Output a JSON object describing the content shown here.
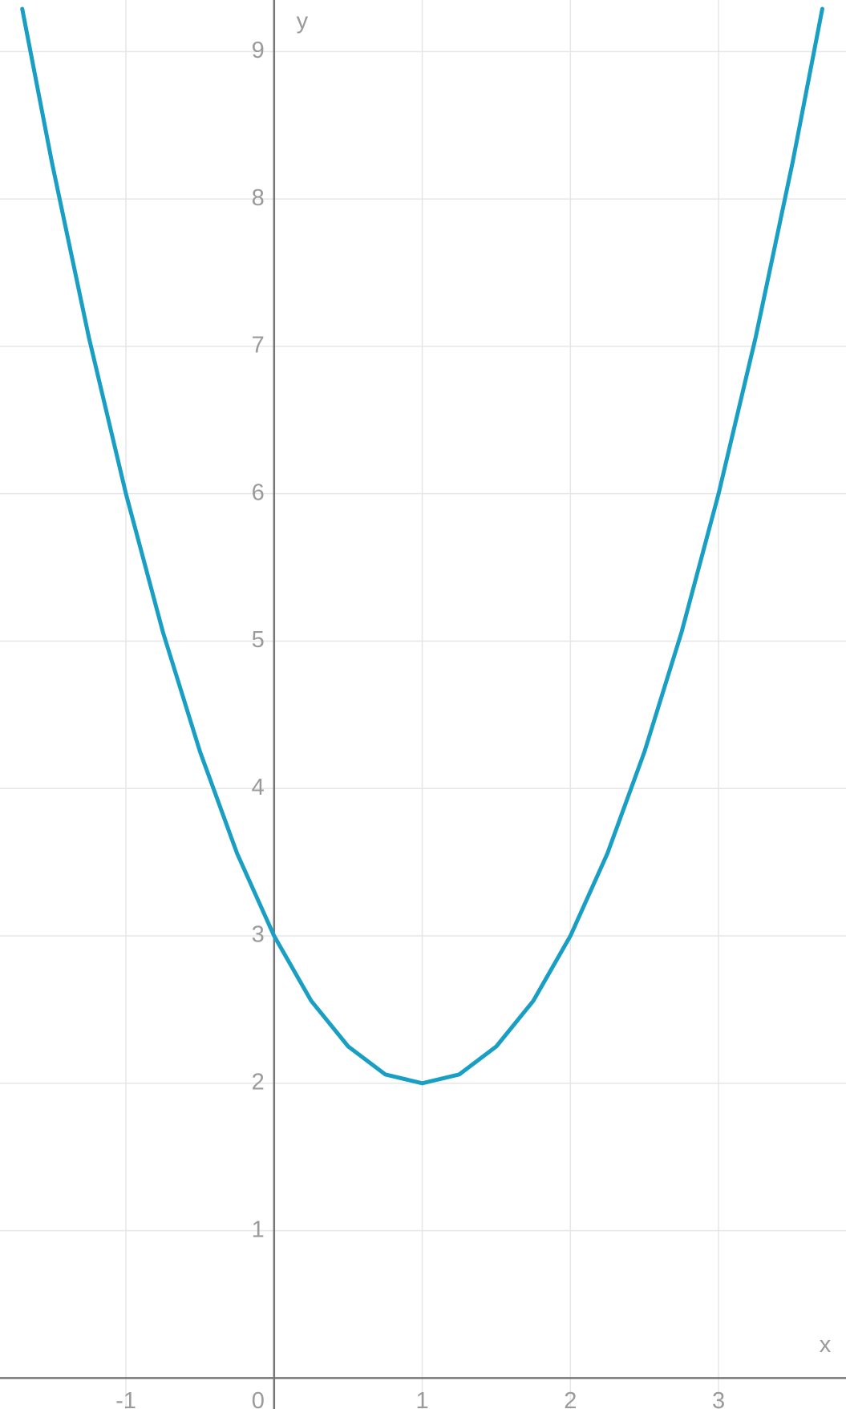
{
  "chart_data": {
    "type": "line",
    "x_label": "x",
    "y_label": "y",
    "x": [
      -1.7,
      -1.5,
      -1.25,
      -1,
      -0.75,
      -0.5,
      -0.25,
      0,
      0.25,
      0.5,
      0.75,
      1,
      1.25,
      1.5,
      1.75,
      2,
      2.25,
      2.5,
      2.75,
      3,
      3.25,
      3.5,
      3.7
    ],
    "values": [
      9.29,
      8.25,
      7.06,
      6,
      5.06,
      4.25,
      3.56,
      3,
      2.56,
      2.25,
      2.06,
      2,
      2.06,
      2.25,
      2.56,
      3,
      3.56,
      4.25,
      5.06,
      6,
      7.06,
      8.25,
      9.29
    ],
    "color": "#1a9fc4",
    "xlim": [
      -1.85,
      3.86
    ],
    "ylim": [
      -0.21,
      9.35
    ],
    "xticks": [
      -1,
      0,
      1,
      2,
      3
    ],
    "yticks": [
      1,
      2,
      3,
      4,
      5,
      6,
      7,
      8,
      9
    ],
    "grid": true
  }
}
